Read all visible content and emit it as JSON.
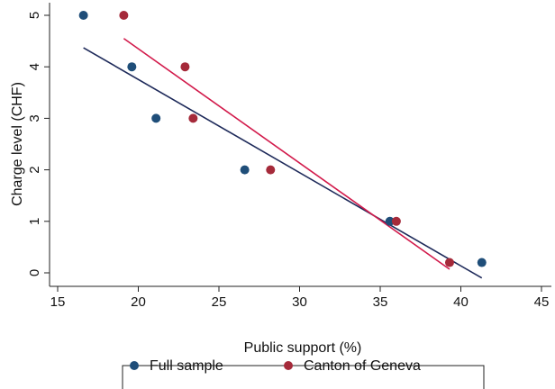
{
  "chart_data": {
    "type": "scatter",
    "xlabel": "Public support (%)",
    "ylabel": "Charge level (CHF)",
    "xlim": [
      15,
      45
    ],
    "ylim": [
      0,
      5
    ],
    "xticks": [
      "15",
      "20",
      "25",
      "30",
      "35",
      "40",
      "45"
    ],
    "yticks": [
      "0",
      "1",
      "2",
      "3",
      "4",
      "5"
    ],
    "grid": false,
    "legend_position": "bottom",
    "series": [
      {
        "name": "Full sample",
        "color": "#1f4e79",
        "points": [
          {
            "x": 16.6,
            "y": 5
          },
          {
            "x": 19.6,
            "y": 4
          },
          {
            "x": 21.1,
            "y": 3
          },
          {
            "x": 26.6,
            "y": 2
          },
          {
            "x": 35.6,
            "y": 1
          },
          {
            "x": 41.3,
            "y": 0.2
          }
        ],
        "fit_line": {
          "x": [
            16.6,
            41.3
          ],
          "y": [
            4.37,
            -0.1
          ]
        }
      },
      {
        "name": "Canton of Geneva",
        "color": "#a52a3a",
        "points": [
          {
            "x": 19.1,
            "y": 5
          },
          {
            "x": 22.9,
            "y": 4
          },
          {
            "x": 23.4,
            "y": 3
          },
          {
            "x": 28.2,
            "y": 2
          },
          {
            "x": 36.0,
            "y": 1
          },
          {
            "x": 39.3,
            "y": 0.2
          }
        ],
        "fit_line": {
          "x": [
            19.1,
            39.3
          ],
          "y": [
            4.55,
            0.07
          ]
        }
      }
    ],
    "fit_line_colors": {
      "Full sample": "#1e2a5a",
      "Canton of Geneva": "#d21a4b"
    }
  }
}
